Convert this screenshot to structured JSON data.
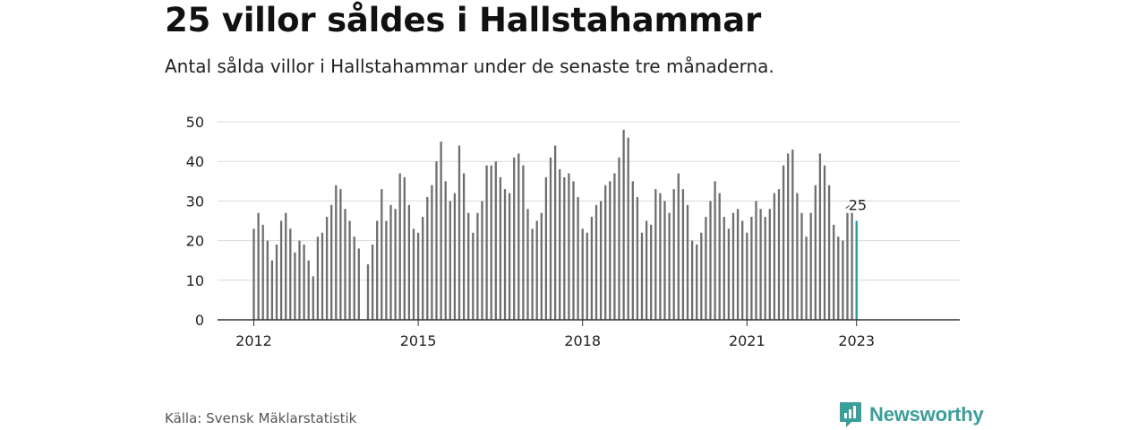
{
  "header": {
    "title": "25 villor såldes i Hallstahammar",
    "subtitle": "Antal sålda villor i Hallstahammar under de senaste tre månaderna."
  },
  "footer": {
    "source": "Källa: Svensk Mäklarstatistik",
    "brand": "Newsworthy"
  },
  "colors": {
    "bar": "#6e6e6e",
    "highlight": "#1a9e96",
    "grid": "#d9d9d9",
    "axis": "#333333",
    "brand": "#3a9e9a"
  },
  "chart_data": {
    "type": "bar",
    "title": "25 villor såldes i Hallstahammar",
    "subtitle": "Antal sålda villor i Hallstahammar under de senaste tre månaderna.",
    "xlabel": "",
    "ylabel": "",
    "ylim": [
      0,
      50
    ],
    "yticks": [
      0,
      10,
      20,
      30,
      40,
      50
    ],
    "grid": true,
    "x_start": "2012-01",
    "x_tick_labels": [
      "2012",
      "2015",
      "2018",
      "2021",
      "2023"
    ],
    "highlight_last": true,
    "highlight_label": "25",
    "series": [
      {
        "values": [
          23,
          27,
          24,
          20,
          15,
          19,
          25,
          27,
          23,
          17,
          20,
          19,
          15,
          11,
          21,
          22,
          26,
          29,
          34,
          33,
          28,
          25,
          21,
          18,
          null,
          14,
          19,
          25,
          33,
          25,
          29,
          28,
          37,
          36,
          29,
          23,
          22,
          26,
          31,
          34,
          40,
          45,
          35,
          30,
          32,
          44,
          37,
          27,
          22,
          27,
          30,
          39,
          39,
          40,
          36,
          33,
          32,
          41,
          42,
          39,
          28,
          23,
          25,
          27,
          36,
          41,
          44,
          38,
          36,
          37,
          35,
          31,
          23,
          22,
          26,
          29,
          30,
          34,
          35,
          37,
          41,
          48,
          46,
          35,
          31,
          22,
          25,
          24,
          33,
          32,
          30,
          27,
          33,
          37,
          33,
          29,
          20,
          19,
          22,
          26,
          30,
          35,
          32,
          26,
          23,
          27,
          28,
          25,
          22,
          26,
          30,
          28,
          26,
          28,
          32,
          33,
          39,
          42,
          43,
          32,
          27,
          21,
          27,
          34,
          42,
          39,
          34,
          24,
          21,
          20,
          27,
          27,
          25
        ]
      }
    ]
  }
}
